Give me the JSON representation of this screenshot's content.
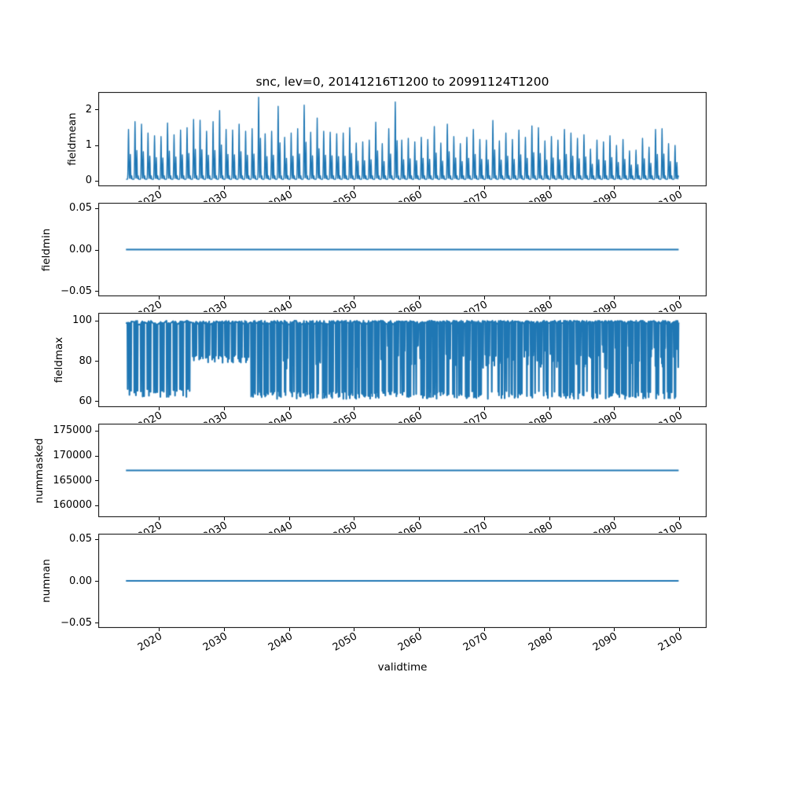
{
  "title": "snc, lev=0, 20141216T1200 to 20991124T1200",
  "xlabel": "validtime",
  "colors": {
    "line": "#1f77b4",
    "spine": "#000000",
    "text": "#000000",
    "background": "#ffffff"
  },
  "x_axis": {
    "label": "validtime",
    "xlim": [
      2010.7,
      2104.2
    ],
    "data_range": [
      2014.96,
      2099.9
    ],
    "ticks": [
      2020,
      2030,
      2040,
      2050,
      2060,
      2070,
      2080,
      2090,
      2100
    ],
    "tick_labels": [
      "2020",
      "2030",
      "2040",
      "2050",
      "2060",
      "2070",
      "2080",
      "2090",
      "2100"
    ],
    "tick_label_rotation_deg": 30
  },
  "chart_data": [
    {
      "type": "line",
      "ylabel": "fieldmean",
      "ylim": [
        -0.155,
        2.49
      ],
      "yticks": [
        0,
        1,
        2
      ],
      "ytick_labels": [
        "0",
        "1",
        "2"
      ],
      "series_type": "double_spike_annual",
      "baseline": 0.04,
      "secondary_ratio": 0.5,
      "annual_peaks_start_year": 2015,
      "annual_peaks": [
        1.4,
        1.62,
        1.55,
        1.3,
        1.22,
        1.2,
        1.58,
        1.25,
        1.38,
        1.45,
        1.68,
        1.66,
        1.35,
        1.62,
        1.93,
        1.4,
        1.38,
        1.55,
        1.35,
        1.42,
        2.3,
        1.28,
        1.35,
        2.05,
        1.18,
        1.3,
        1.42,
        2.08,
        1.32,
        1.72,
        1.35,
        1.32,
        1.28,
        1.3,
        1.45,
        1.02,
        1.05,
        1.1,
        1.6,
        1.0,
        1.42,
        2.17,
        1.1,
        1.15,
        1.05,
        1.18,
        1.12,
        1.48,
        1.02,
        1.55,
        1.2,
        1.0,
        1.18,
        1.4,
        1.12,
        1.1,
        1.65,
        1.08,
        1.3,
        1.12,
        1.38,
        1.18,
        1.5,
        1.45,
        1.08,
        1.2,
        1.1,
        1.4,
        1.3,
        1.15,
        1.25,
        0.85,
        1.1,
        1.05,
        1.22,
        0.95,
        1.12,
        0.8,
        0.82,
        1.15,
        0.9,
        1.4,
        1.42,
        1.0,
        0.95
      ]
    },
    {
      "type": "line",
      "ylabel": "fieldmin",
      "ylim": [
        -0.0562,
        0.0562
      ],
      "yticks": [
        -0.05,
        0.0,
        0.05
      ],
      "ytick_labels": [
        "−0.05",
        "0.00",
        "0.05"
      ],
      "series_type": "constant",
      "constant": 0.0
    },
    {
      "type": "line",
      "ylabel": "fieldmax",
      "ylim": [
        56.9,
        103.9
      ],
      "yticks": [
        60,
        80,
        100
      ],
      "ytick_labels": [
        "60",
        "80",
        "100"
      ],
      "series_type": "annual_dips",
      "ceiling": 100,
      "segments": [
        {
          "from": 2015,
          "to": 2024,
          "min": 62,
          "dips_per_year": 3,
          "mid_dip_prob": 0.0
        },
        {
          "from": 2025,
          "to": 2033,
          "min": 79,
          "dips_per_year": 4,
          "mid_dip_prob": 0.0
        },
        {
          "from": 2034,
          "to": 2056,
          "min": 61,
          "dips_per_year": 5,
          "mid_dip_prob": 0.15
        },
        {
          "from": 2057,
          "to": 2099,
          "min": 61,
          "dips_per_year": 6,
          "mid_dip_prob": 0.45
        }
      ]
    },
    {
      "type": "line",
      "ylabel": "nummasked",
      "ylim": [
        157600,
        176400
      ],
      "yticks": [
        160000,
        165000,
        170000,
        175000
      ],
      "ytick_labels": [
        "160000",
        "165000",
        "170000",
        "175000"
      ],
      "series_type": "constant",
      "constant": 167000
    },
    {
      "type": "line",
      "ylabel": "numnan",
      "ylim": [
        -0.0562,
        0.0562
      ],
      "yticks": [
        -0.05,
        0.0,
        0.05
      ],
      "ytick_labels": [
        "−0.05",
        "0.00",
        "0.05"
      ],
      "series_type": "constant",
      "constant": 0.0
    }
  ]
}
